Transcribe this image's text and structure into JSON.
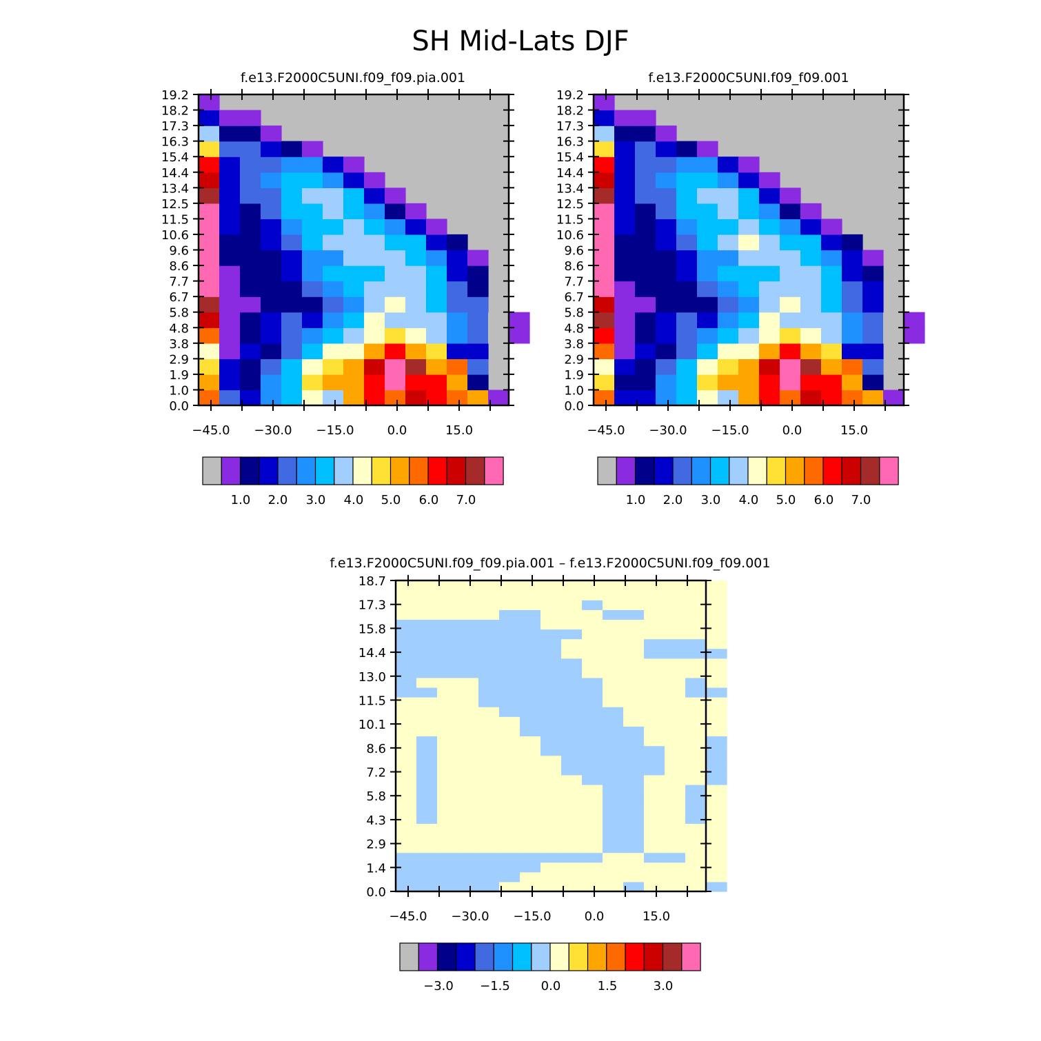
{
  "title": "SH Mid-Lats DJF",
  "palette": [
    "#bdbdbd",
    "#8a2be2",
    "#00008b",
    "#0000cd",
    "#4169e1",
    "#1e90ff",
    "#00bfff",
    "#a0cfff",
    "#ffffc8",
    "#ffe135",
    "#ffa500",
    "#ff6a00",
    "#ff0000",
    "#cd0000",
    "#a52a2a",
    "#ff69b4"
  ],
  "chart_data": [
    {
      "type": "heatmap",
      "subtitle": "f.e13.F2000C5UNI.f09_f09.pia.001",
      "x_ticks": [
        "-45.0",
        "-30.0",
        "-15.0",
        "0.0",
        "15.0"
      ],
      "y_ticks": [
        "0.0",
        "1.0",
        "1.9",
        "2.9",
        "3.8",
        "4.8",
        "5.8",
        "6.7",
        "7.7",
        "8.6",
        "9.6",
        "10.6",
        "11.5",
        "12.5",
        "13.4",
        "14.4",
        "15.4",
        "16.3",
        "17.3",
        "18.2",
        "19.2"
      ],
      "colorbar_labels": [
        "1.0",
        "2.0",
        "3.0",
        "4.0",
        "5.0",
        "6.0",
        "7.0"
      ],
      "grid": [
        [
          11,
          4,
          3,
          5,
          6,
          8,
          7,
          10,
          12,
          11,
          13,
          12,
          11,
          10,
          1
        ],
        [
          10,
          3,
          2,
          5,
          6,
          9,
          10,
          10,
          12,
          15,
          12,
          12,
          10,
          2
        ],
        [
          9,
          3,
          2,
          4,
          6,
          8,
          9,
          10,
          13,
          15,
          14,
          10,
          11,
          4
        ],
        [
          8,
          1,
          3,
          2,
          4,
          6,
          8,
          8,
          10,
          12,
          10,
          9,
          3,
          3
        ],
        [
          11,
          1,
          2,
          3,
          4,
          5,
          6,
          7,
          8,
          9,
          8,
          7,
          5,
          4,
          0,
          1
        ],
        [
          13,
          1,
          2,
          3,
          4,
          3,
          5,
          6,
          8,
          7,
          7,
          7,
          5,
          4,
          0,
          1
        ],
        [
          14,
          1,
          1,
          2,
          2,
          2,
          4,
          5,
          7,
          8,
          7,
          6,
          4,
          4
        ],
        [
          15,
          1,
          2,
          2,
          2,
          4,
          5,
          6,
          7,
          7,
          7,
          6,
          4,
          2
        ],
        [
          15,
          1,
          2,
          2,
          3,
          5,
          6,
          6,
          6,
          7,
          7,
          6,
          3,
          2
        ],
        [
          15,
          2,
          2,
          2,
          3,
          5,
          5,
          7,
          7,
          7,
          6,
          5,
          3,
          1
        ],
        [
          15,
          2,
          2,
          3,
          4,
          6,
          7,
          7,
          7,
          6,
          6,
          3,
          2
        ],
        [
          15,
          3,
          2,
          3,
          5,
          6,
          6,
          7,
          6,
          5,
          3,
          1
        ],
        [
          15,
          3,
          2,
          4,
          6,
          6,
          7,
          6,
          5,
          2,
          1
        ],
        [
          14,
          3,
          4,
          4,
          6,
          7,
          7,
          6,
          3,
          1
        ],
        [
          13,
          3,
          4,
          5,
          6,
          6,
          5,
          3,
          1
        ],
        [
          12,
          3,
          4,
          4,
          5,
          5,
          3,
          1
        ],
        [
          9,
          4,
          4,
          3,
          2,
          1
        ],
        [
          7,
          2,
          2,
          1
        ],
        [
          3,
          1,
          1
        ],
        [
          1
        ]
      ]
    },
    {
      "type": "heatmap",
      "subtitle": "f.e13.F2000C5UNI.f09_f09.001",
      "x_ticks": [
        "-45.0",
        "-30.0",
        "-15.0",
        "0.0",
        "15.0"
      ],
      "y_ticks": [
        "0.0",
        "1.0",
        "1.9",
        "2.9",
        "3.8",
        "4.8",
        "5.8",
        "6.7",
        "7.7",
        "8.6",
        "9.6",
        "10.6",
        "11.5",
        "12.5",
        "13.4",
        "14.4",
        "15.4",
        "16.3",
        "17.3",
        "18.2",
        "19.2"
      ],
      "colorbar_labels": [
        "1.0",
        "2.0",
        "3.0",
        "4.0",
        "5.0",
        "6.0",
        "7.0"
      ],
      "grid": [
        [
          11,
          3,
          3,
          5,
          6,
          8,
          7,
          10,
          12,
          11,
          13,
          12,
          11,
          10,
          1
        ],
        [
          9,
          2,
          2,
          5,
          6,
          9,
          10,
          10,
          12,
          15,
          12,
          12,
          10,
          2
        ],
        [
          8,
          3,
          2,
          4,
          6,
          8,
          9,
          10,
          13,
          15,
          14,
          10,
          11,
          4
        ],
        [
          11,
          1,
          3,
          2,
          4,
          6,
          8,
          8,
          10,
          12,
          10,
          9,
          3,
          3
        ],
        [
          12,
          1,
          2,
          3,
          4,
          5,
          6,
          7,
          8,
          9,
          8,
          7,
          5,
          4,
          0,
          1
        ],
        [
          14,
          1,
          2,
          3,
          4,
          3,
          5,
          6,
          8,
          7,
          7,
          7,
          5,
          4,
          0,
          1
        ],
        [
          13,
          1,
          1,
          2,
          2,
          2,
          4,
          5,
          7,
          8,
          7,
          6,
          4,
          3
        ],
        [
          15,
          1,
          2,
          2,
          2,
          4,
          5,
          6,
          7,
          7,
          7,
          6,
          4,
          3
        ],
        [
          15,
          2,
          2,
          2,
          3,
          5,
          6,
          6,
          6,
          7,
          7,
          6,
          3,
          2
        ],
        [
          15,
          2,
          2,
          2,
          3,
          5,
          5,
          7,
          7,
          7,
          6,
          5,
          3,
          1
        ],
        [
          15,
          2,
          2,
          3,
          4,
          6,
          7,
          8,
          7,
          6,
          6,
          3,
          2
        ],
        [
          15,
          3,
          2,
          3,
          5,
          6,
          6,
          7,
          6,
          5,
          3,
          1
        ],
        [
          15,
          3,
          2,
          4,
          6,
          6,
          7,
          6,
          5,
          2,
          1
        ],
        [
          14,
          3,
          4,
          4,
          6,
          7,
          7,
          6,
          3,
          1
        ],
        [
          13,
          3,
          4,
          5,
          6,
          6,
          5,
          3,
          1
        ],
        [
          12,
          3,
          4,
          4,
          5,
          5,
          3,
          1
        ],
        [
          9,
          3,
          4,
          3,
          2,
          1
        ],
        [
          7,
          2,
          2,
          1
        ],
        [
          3,
          1,
          1
        ],
        [
          1
        ]
      ]
    },
    {
      "type": "heatmap",
      "subtitle": "f.e13.F2000C5UNI.f09_f09.pia.001 – f.e13.F2000C5UNI.f09_f09.001",
      "x_ticks": [
        "-45.0",
        "-30.0",
        "-15.0",
        "0.0",
        "15.0"
      ],
      "y_ticks": [
        "0.0",
        "1.4",
        "2.9",
        "4.3",
        "5.8",
        "7.2",
        "8.6",
        "10.1",
        "11.5",
        "13.0",
        "14.4",
        "15.8",
        "17.3",
        "18.7"
      ],
      "colorbar_labels": [
        "-3.0",
        "-1.5",
        "0.0",
        "1.5",
        "3.0"
      ],
      "grid": [
        [
          7,
          7,
          7,
          7,
          7,
          8,
          8,
          8,
          8,
          8,
          8,
          7,
          8,
          8,
          8,
          7
        ],
        [
          7,
          7,
          7,
          7,
          7,
          7,
          8,
          8,
          8,
          8,
          8,
          8,
          8,
          8,
          8,
          8
        ],
        [
          7,
          7,
          7,
          7,
          7,
          7,
          7,
          8,
          8,
          8,
          8,
          8,
          8,
          8,
          8,
          8
        ],
        [
          7,
          7,
          7,
          7,
          7,
          7,
          7,
          7,
          7,
          7,
          8,
          8,
          7,
          7,
          8,
          8
        ],
        [
          8,
          8,
          8,
          8,
          8,
          8,
          8,
          8,
          8,
          8,
          7,
          7,
          8,
          8,
          8,
          8
        ],
        [
          8,
          8,
          8,
          8,
          8,
          8,
          8,
          8,
          8,
          8,
          7,
          7,
          8,
          8,
          8,
          8
        ],
        [
          8,
          8,
          8,
          8,
          8,
          8,
          8,
          8,
          8,
          8,
          7,
          7,
          8,
          8,
          8,
          8
        ],
        [
          8,
          7,
          8,
          8,
          8,
          8,
          8,
          8,
          8,
          8,
          7,
          7,
          8,
          8,
          7,
          8
        ],
        [
          8,
          7,
          8,
          8,
          8,
          8,
          8,
          8,
          8,
          8,
          7,
          7,
          8,
          8,
          7,
          8
        ],
        [
          8,
          7,
          8,
          8,
          8,
          8,
          8,
          8,
          8,
          8,
          7,
          7,
          8,
          8,
          7,
          8
        ],
        [
          8,
          7,
          8,
          8,
          8,
          8,
          8,
          8,
          8,
          8,
          7,
          7,
          8,
          8,
          7,
          8
        ],
        [
          8,
          7,
          8,
          8,
          8,
          8,
          8,
          8,
          8,
          7,
          7,
          7,
          8,
          8,
          8,
          7
        ],
        [
          8,
          7,
          8,
          8,
          8,
          8,
          8,
          8,
          7,
          7,
          7,
          7,
          7,
          8,
          8,
          7
        ],
        [
          8,
          7,
          8,
          8,
          8,
          8,
          8,
          8,
          7,
          7,
          7,
          7,
          7,
          8,
          8,
          7
        ],
        [
          8,
          7,
          8,
          8,
          8,
          8,
          8,
          7,
          7,
          7,
          7,
          7,
          7,
          8,
          8,
          7
        ],
        [
          8,
          7,
          8,
          8,
          8,
          8,
          8,
          7,
          7,
          7,
          7,
          7,
          8,
          8,
          8,
          7
        ],
        [
          8,
          8,
          8,
          8,
          8,
          8,
          7,
          7,
          7,
          7,
          7,
          7,
          8,
          8,
          8,
          8
        ],
        [
          8,
          8,
          8,
          8,
          8,
          8,
          7,
          7,
          7,
          7,
          7,
          8,
          8,
          8,
          8,
          8
        ],
        [
          8,
          8,
          8,
          8,
          8,
          7,
          7,
          7,
          7,
          7,
          7,
          8,
          8,
          8,
          8,
          8
        ],
        [
          8,
          8,
          8,
          8,
          7,
          7,
          7,
          7,
          7,
          7,
          8,
          8,
          8,
          8,
          8,
          8
        ],
        [
          7,
          7,
          8,
          8,
          7,
          7,
          7,
          7,
          7,
          7,
          8,
          8,
          8,
          8,
          7,
          7
        ],
        [
          7,
          8,
          8,
          8,
          7,
          7,
          7,
          7,
          7,
          7,
          8,
          8,
          8,
          8,
          7,
          8
        ],
        [
          7,
          7,
          7,
          7,
          7,
          7,
          7,
          7,
          7,
          8,
          8,
          8,
          8,
          8,
          8,
          8
        ],
        [
          7,
          7,
          7,
          7,
          7,
          7,
          7,
          7,
          7,
          8,
          8,
          8,
          8,
          8,
          8,
          8
        ],
        [
          7,
          7,
          7,
          7,
          7,
          7,
          7,
          7,
          8,
          8,
          8,
          8,
          7,
          7,
          7,
          7
        ],
        [
          7,
          7,
          7,
          7,
          7,
          7,
          7,
          7,
          8,
          8,
          8,
          8,
          7,
          7,
          7,
          8
        ],
        [
          7,
          7,
          7,
          7,
          7,
          7,
          7,
          7,
          7,
          8,
          8,
          8,
          8,
          8,
          8,
          8
        ],
        [
          7,
          7,
          7,
          7,
          7,
          7,
          7,
          8,
          8,
          8,
          8,
          8,
          8,
          8,
          8,
          8
        ],
        [
          8,
          8,
          8,
          8,
          8,
          7,
          7,
          8,
          8,
          8,
          7,
          7,
          8,
          8,
          8,
          8
        ],
        [
          8,
          8,
          8,
          8,
          8,
          8,
          8,
          8,
          8,
          7,
          8,
          8,
          8,
          8,
          8,
          8
        ],
        [
          8,
          8,
          8,
          8,
          8,
          8,
          8,
          8,
          8,
          8,
          8,
          8,
          8,
          8,
          8,
          8
        ],
        [
          8,
          8,
          8,
          8,
          8,
          8,
          8,
          8,
          8,
          8,
          8,
          8,
          8,
          8,
          8,
          8
        ]
      ]
    }
  ]
}
